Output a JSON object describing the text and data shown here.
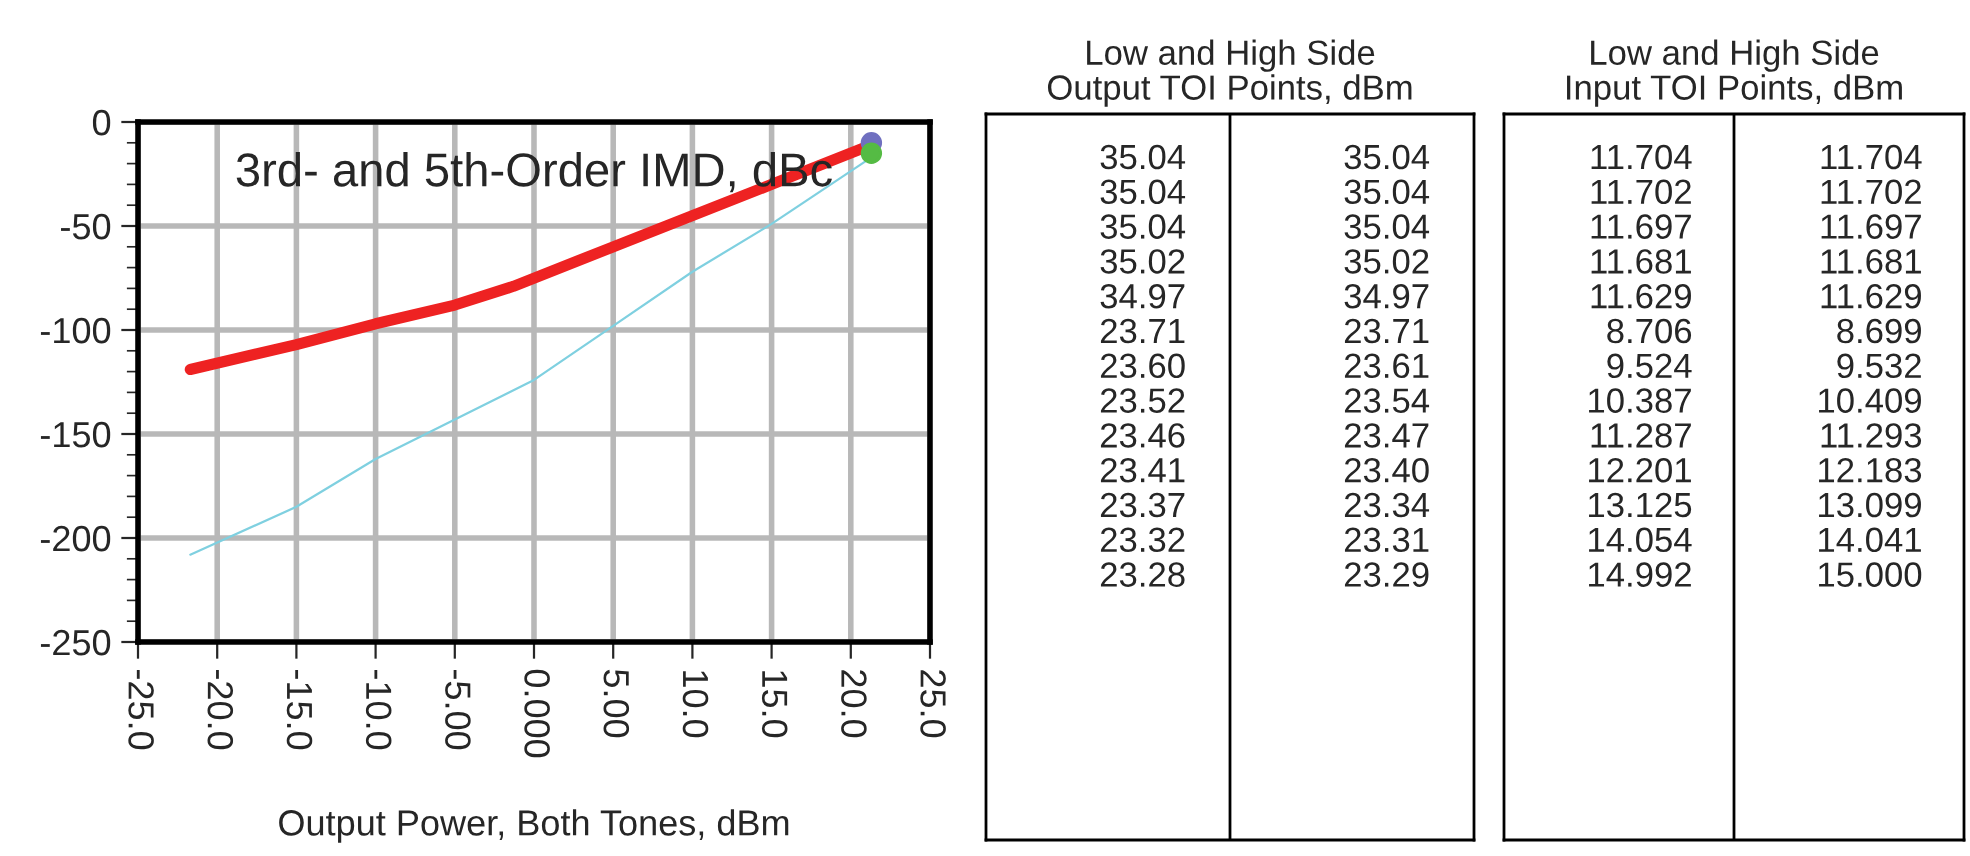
{
  "chart_data": [
    {
      "type": "line",
      "title": "3rd- and 5th-Order IMD, dBc",
      "xlabel": "Output Power, Both Tones, dBm",
      "xlim": [
        -25,
        25
      ],
      "xticks": [
        {
          "value": -25,
          "label": "-25.0"
        },
        {
          "value": -20,
          "label": "-20.0"
        },
        {
          "value": -15,
          "label": "-15.0"
        },
        {
          "value": -10,
          "label": "-10.0"
        },
        {
          "value": -5,
          "label": "-5.00"
        },
        {
          "value": 0,
          "label": "0.000"
        },
        {
          "value": 5,
          "label": "5.00"
        },
        {
          "value": 10,
          "label": "10.0"
        },
        {
          "value": 15,
          "label": "15.0"
        },
        {
          "value": 20,
          "label": "20.0"
        },
        {
          "value": 25,
          "label": "25.0"
        }
      ],
      "ylim": [
        -250,
        0
      ],
      "yticks": [
        -250,
        -200,
        -150,
        -100,
        -50,
        0
      ],
      "grid": true,
      "series": [
        {
          "type": "line",
          "color": "#ee2222",
          "x": [
            -21.7,
            -15,
            -10,
            -5,
            -1.3,
            5,
            10,
            15,
            21.3
          ],
          "values": [
            -119,
            -107,
            -97,
            -88,
            -79,
            -60,
            -45,
            -30,
            -11
          ]
        },
        {
          "type": "line",
          "color": "#7fd0e0",
          "x": [
            -21.7,
            -15,
            -10,
            -5,
            0,
            5,
            10,
            15,
            21.3
          ],
          "values": [
            -208,
            -185,
            -162,
            -143,
            -124,
            -98,
            -72,
            -49,
            -17
          ]
        },
        {
          "type": "scatter",
          "color": "#7070c0",
          "x": [
            21.3
          ],
          "values": [
            -10
          ]
        },
        {
          "type": "scatter",
          "color": "#55bb44",
          "x": [
            21.3
          ],
          "values": [
            -15
          ]
        }
      ]
    },
    {
      "type": "other",
      "title": "Low and High Side\nOutput TOI Points, dBm",
      "annotations": [
        "35.04",
        "35.04",
        "35.04",
        "35.04",
        "35.04",
        "35.04",
        "35.02",
        "35.02",
        "34.97",
        "34.97",
        "23.71",
        "23.71",
        "23.60",
        "23.61",
        "23.52",
        "23.54",
        "23.46",
        "23.47",
        "23.41",
        "23.40",
        "23.37",
        "23.34",
        "23.32",
        "23.31",
        "23.28",
        "23.29"
      ]
    },
    {
      "type": "other",
      "title": "Low and High Side\nInput TOI Points, dBm",
      "annotations": [
        "11.704",
        "11.704",
        "11.702",
        "11.702",
        "11.697",
        "11.697",
        "11.681",
        "11.681",
        "11.629",
        "11.629",
        "8.706",
        "8.699",
        "9.524",
        "9.532",
        "10.387",
        "10.409",
        "11.287",
        "11.293",
        "12.201",
        "12.183",
        "13.125",
        "13.099",
        "14.054",
        "14.041",
        "14.992",
        "15.000"
      ]
    }
  ]
}
